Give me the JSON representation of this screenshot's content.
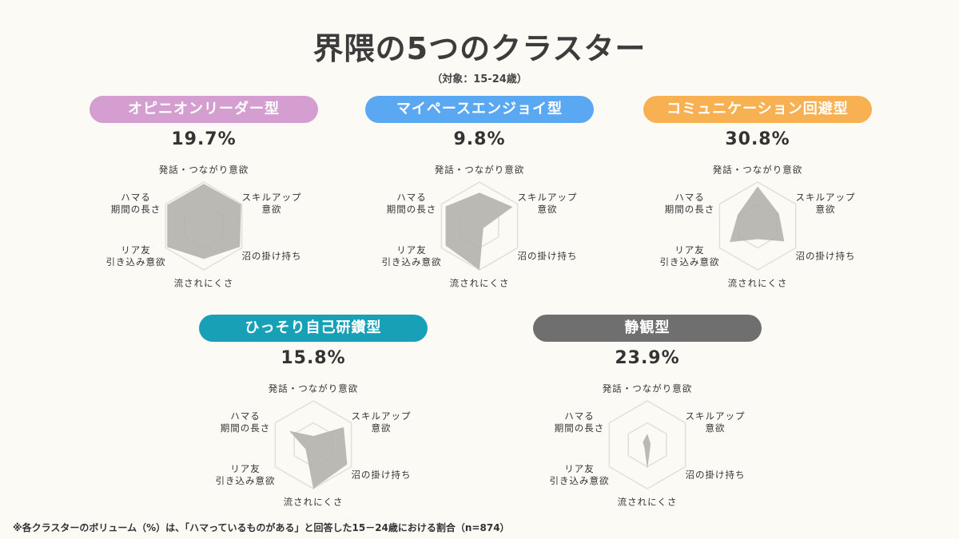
{
  "title": "界隈の5つのクラスター",
  "subtitle": "（対象：15-24歳）",
  "footnote": "※各クラスターのボリューム（%）は、「ハマっているものがある」と回答した15－24歳における割合（n=874）",
  "chart_data": {
    "type": "radar",
    "axes": [
      "発話・つながり意欲",
      "スキルアップ\n意欲",
      "沼の掛け持ち",
      "流されにくさ",
      "リア友\n引き込み意欲",
      "ハマる\n期間の長さ"
    ],
    "range": [
      0,
      1
    ],
    "grid_levels": 2,
    "fill_color": "#b3b1ad",
    "clusters": [
      {
        "name": "オピニオンリーダー型",
        "share": "19.7%",
        "color": "#d49fd0",
        "values": [
          0.96,
          0.98,
          0.95,
          0.75,
          0.96,
          0.96
        ]
      },
      {
        "name": "マイペースエンジョイ型",
        "share": "9.8%",
        "color": "#5aa7f2",
        "values": [
          0.76,
          0.87,
          0.1,
          1.0,
          0.89,
          0.89
        ]
      },
      {
        "name": "コミュニケーション回避型",
        "share": "30.8%",
        "color": "#f8b152",
        "values": [
          0.9,
          0.56,
          0.7,
          0.3,
          0.73,
          0.52
        ]
      },
      {
        "name": "ひっそり自己研鑽型",
        "share": "15.8%",
        "color": "#18a0b6",
        "values": [
          0.2,
          0.8,
          0.89,
          1.0,
          0.2,
          0.63
        ]
      },
      {
        "name": "静観型",
        "share": "23.9%",
        "color": "#6f6f6f",
        "values": [
          0.25,
          0.08,
          0.08,
          0.55,
          0.08,
          0.12
        ]
      }
    ]
  }
}
